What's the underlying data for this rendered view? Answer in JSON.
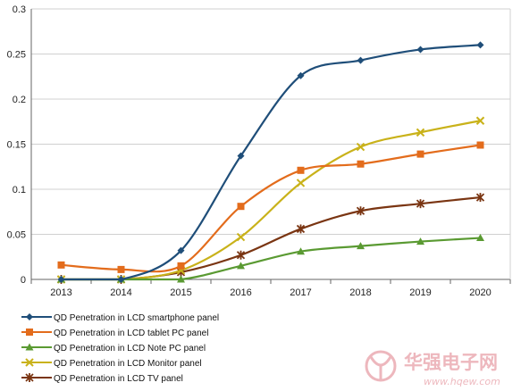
{
  "chart_data": {
    "type": "line",
    "x": [
      "2013",
      "2014",
      "2015",
      "2016",
      "2017",
      "2018",
      "2019",
      "2020"
    ],
    "ylim": [
      0,
      0.3
    ],
    "yticks": [
      "0",
      "0.05",
      "0.1",
      "0.15",
      "0.2",
      "0.25",
      "0.3"
    ],
    "ytick_values": [
      0,
      0.05,
      0.1,
      0.15,
      0.2,
      0.25,
      0.3
    ],
    "grid": "horizontal",
    "legend_position": "bottom",
    "series": [
      {
        "name": "QD Penetration in LCD smartphone panel",
        "color": "#1f4e79",
        "marker": "diamond",
        "values": [
          0,
          0,
          0.032,
          0.137,
          0.226,
          0.243,
          0.255,
          0.26
        ]
      },
      {
        "name": "QD Penetration in LCD tablet PC panel",
        "color": "#e36c1c",
        "marker": "square",
        "values": [
          0.016,
          0.011,
          0.015,
          0.081,
          0.121,
          0.128,
          0.139,
          0.149
        ]
      },
      {
        "name": "QD Penetration in LCD Note PC panel",
        "color": "#5a9a32",
        "marker": "triangle",
        "values": [
          0,
          0,
          0,
          0.015,
          0.031,
          0.037,
          0.042,
          0.046
        ]
      },
      {
        "name": "QD Penetration in LCD Monitor panel",
        "color": "#c9b21a",
        "marker": "x",
        "values": [
          0,
          0,
          0.01,
          0.047,
          0.107,
          0.147,
          0.163,
          0.176
        ]
      },
      {
        "name": "QD Penetration in LCD TV panel",
        "color": "#7a3512",
        "marker": "star",
        "values": [
          0,
          0,
          0.008,
          0.027,
          0.056,
          0.076,
          0.084,
          0.091
        ]
      }
    ]
  },
  "watermark": {
    "text_cn": "华强电子网",
    "url": "www.hqew.com",
    "color": "#e8a0a8"
  }
}
